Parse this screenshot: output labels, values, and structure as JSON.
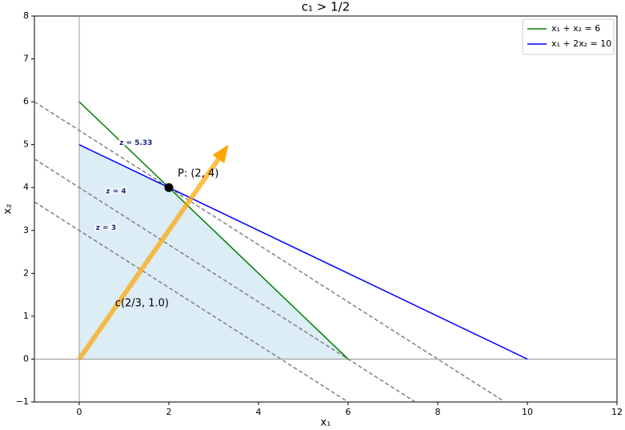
{
  "chart_data": {
    "type": "line",
    "title": "c₁ > 1/2",
    "xlabel": "x₁",
    "ylabel": "x₂",
    "xlim": [
      -1,
      12
    ],
    "ylim": [
      -1,
      8
    ],
    "xticks": [
      0,
      2,
      4,
      6,
      8,
      10,
      12
    ],
    "yticks": [
      {
        "value": -1,
        "label": "−1"
      },
      0,
      1,
      2,
      3,
      4,
      5,
      6,
      7,
      8
    ],
    "legend": "upper right",
    "series": [
      {
        "name": "x₁ + x₂ = 6",
        "color": "#008000",
        "x": [
          0,
          6
        ],
        "values": [
          6,
          0
        ]
      },
      {
        "name": "x₁ + 2x₂ = 10",
        "color": "#0000ff",
        "x": [
          0,
          10
        ],
        "values": [
          5,
          0
        ]
      }
    ],
    "level_lines": [
      {
        "label": "z = 3",
        "color": "#808080",
        "x": [
          -1,
          6
        ],
        "values": [
          3.667,
          -1
        ]
      },
      {
        "label": "z = 4",
        "color": "#808080",
        "x": [
          -1,
          7.5
        ],
        "values": [
          4.667,
          -1
        ]
      },
      {
        "label": "z = 5.33",
        "color": "#808080",
        "x": [
          -1,
          9.5
        ],
        "values": [
          6,
          -1
        ]
      }
    ],
    "region": {
      "color": "#dcedf6",
      "x": [
        0,
        0,
        2,
        6
      ],
      "values": [
        0,
        5,
        4,
        0
      ]
    },
    "point": {
      "label": "P: (2, 4)",
      "x": 2,
      "y": 4,
      "color": "#000000"
    },
    "arrow": {
      "label": "c(2/3, 1.0)",
      "color": "#ffa500",
      "x": [
        0,
        3.33
      ],
      "values": [
        0,
        5
      ]
    }
  }
}
